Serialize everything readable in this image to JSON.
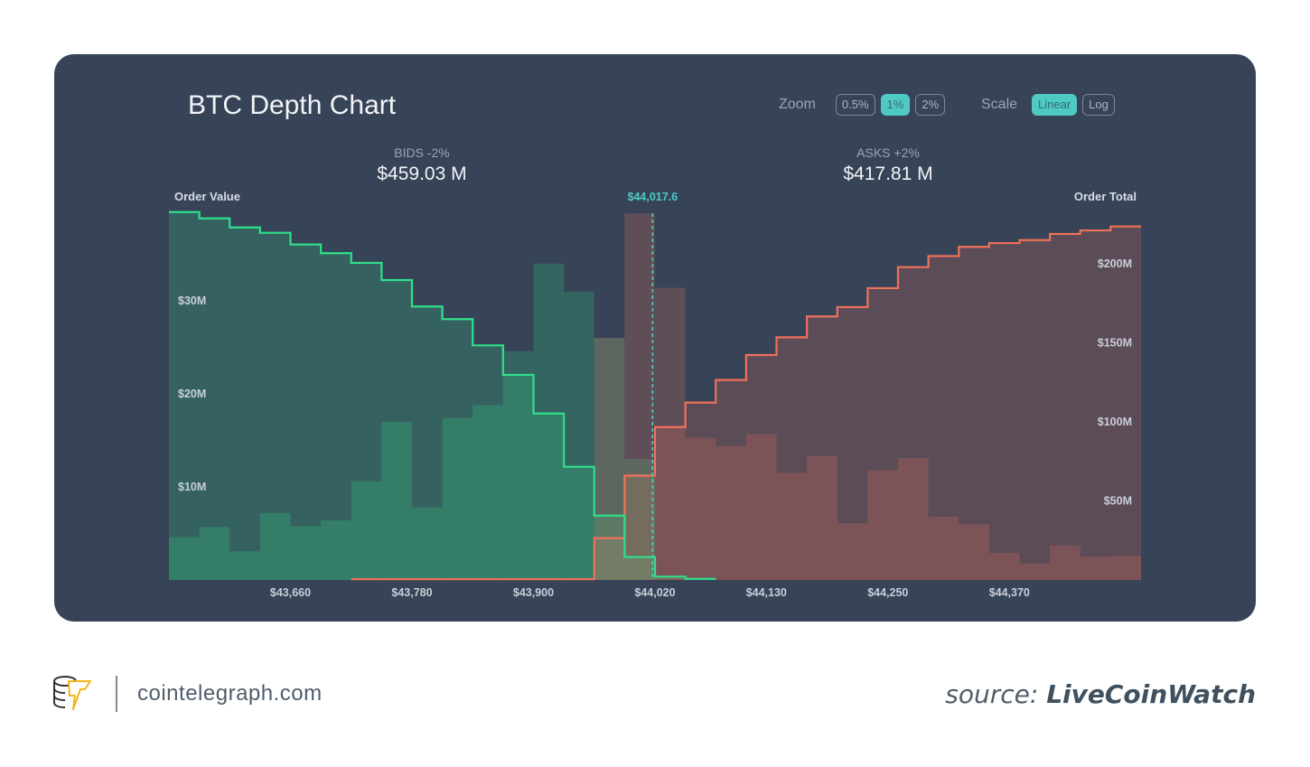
{
  "header": {
    "title": "BTC Depth Chart",
    "zoom_label": "Zoom",
    "zoom_options": [
      "0.5%",
      "1%",
      "2%"
    ],
    "zoom_selected": "1%",
    "scale_label": "Scale",
    "scale_options": [
      "Linear",
      "Log"
    ],
    "scale_selected": "Linear"
  },
  "summary": {
    "bids_label": "BIDS -2%",
    "bids_value": "$459.03 M",
    "asks_label": "ASKS +2%",
    "asks_value": "$417.81 M"
  },
  "colors": {
    "panel": "#374357",
    "bid": "#2ee08a",
    "ask": "#f0715a",
    "mid": "#4fc9c4",
    "accent": "#4fc9c4"
  },
  "chart_data": {
    "type": "bar",
    "subtype": "depth-chart (stepped cumulative area + per-level order value bars)",
    "title": "BTC Depth Chart",
    "mid_price": 44017.6,
    "mid_price_label": "$44,017.6",
    "left_axis": {
      "label": "Order Value",
      "range": [
        0,
        39.4
      ],
      "unit": "M USD",
      "ticks": [
        10,
        20,
        30
      ],
      "tick_labels": [
        "$10M",
        "$20M",
        "$30M"
      ]
    },
    "right_axis": {
      "label": "Order Total",
      "range": [
        0,
        233
      ],
      "unit": "M USD",
      "ticks": [
        50,
        100,
        150,
        200
      ],
      "tick_labels": [
        "$50M",
        "$100M",
        "$150M",
        "$200M"
      ]
    },
    "x_axis": {
      "range": [
        43540,
        44500
      ],
      "ticks": [
        43660,
        43780,
        43900,
        44020,
        44130,
        44250,
        44370
      ],
      "tick_labels": [
        "$43,660",
        "$43,780",
        "$43,900",
        "$44,020",
        "$44,130",
        "$44,250",
        "$44,370"
      ]
    },
    "bin_start_prices": [
      43540,
      43570,
      43600,
      43630,
      43660,
      43690,
      43720,
      43750,
      43780,
      43810,
      43840,
      43870,
      43900,
      43930,
      43960,
      43990,
      44020,
      44050,
      44080,
      44110,
      44140,
      44170,
      44200,
      44230,
      44260,
      44290,
      44320,
      44350,
      44380,
      44410,
      44440,
      44470
    ],
    "bin_width": 30,
    "grid": false,
    "legend": "none",
    "series": [
      {
        "name": "Bids order value",
        "axis": "left",
        "kind": "bar",
        "values": [
          4.6,
          5.7,
          3.1,
          7.2,
          5.8,
          6.4,
          10.6,
          17.0,
          7.8,
          17.4,
          18.8,
          24.6,
          34.0,
          31.0,
          26.0,
          13.0,
          null,
          null,
          null,
          null,
          null,
          null,
          null,
          null,
          null,
          null,
          null,
          null,
          null,
          null,
          null,
          null
        ]
      },
      {
        "name": "Asks order value",
        "axis": "left",
        "kind": "bar",
        "values": [
          null,
          null,
          null,
          null,
          null,
          null,
          null,
          null,
          null,
          null,
          null,
          null,
          null,
          null,
          26.0,
          39.4,
          31.4,
          15.3,
          14.4,
          15.7,
          11.5,
          13.3,
          6.1,
          11.8,
          13.1,
          6.8,
          6.0,
          2.9,
          1.8,
          3.7,
          2.5,
          2.6
        ]
      },
      {
        "name": "Bids order total",
        "axis": "right",
        "kind": "step",
        "values": [
          232.7,
          228.7,
          223.0,
          219.6,
          212.2,
          206.7,
          200.6,
          189.7,
          173.0,
          165.0,
          148.4,
          129.7,
          105.3,
          71.6,
          40.7,
          14.5,
          2.1,
          0.7,
          null,
          null,
          null,
          null,
          null,
          null,
          null,
          null,
          null,
          null,
          null,
          null,
          null,
          null
        ]
      },
      {
        "name": "Asks order total",
        "axis": "right",
        "kind": "step",
        "values": [
          null,
          null,
          null,
          null,
          null,
          null,
          0.5,
          0.5,
          0.5,
          0.5,
          0.5,
          0.5,
          0.5,
          0.5,
          26.5,
          66.0,
          96.7,
          112.2,
          126.5,
          142.3,
          153.5,
          166.7,
          172.6,
          184.6,
          197.9,
          204.9,
          210.7,
          213.1,
          215.0,
          218.9,
          221.1,
          223.6
        ]
      }
    ]
  },
  "footer": {
    "brand_domain": "cointelegraph.com",
    "source_prefix": "source:",
    "source_name": "LiveCoinWatch"
  }
}
